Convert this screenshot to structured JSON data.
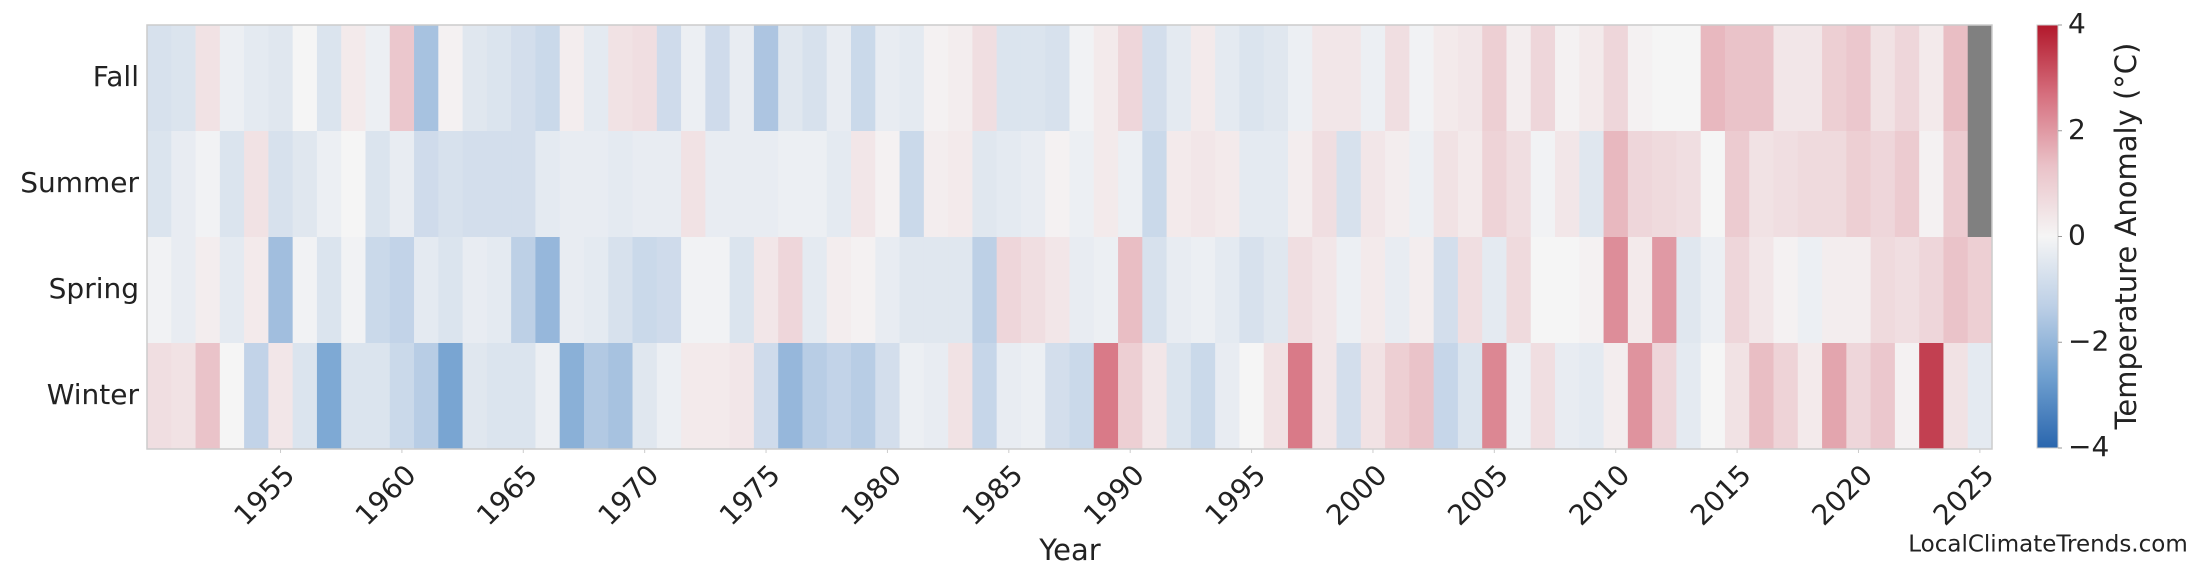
{
  "chart_data": {
    "type": "heatmap",
    "xlabel": "Year",
    "colorbar_label": "Temperature Anomaly (°C)",
    "watermark": "LocalClimateTrends.com",
    "x": [
      1950,
      1951,
      1952,
      1953,
      1954,
      1955,
      1956,
      1957,
      1958,
      1959,
      1960,
      1961,
      1962,
      1963,
      1964,
      1965,
      1966,
      1967,
      1968,
      1969,
      1970,
      1971,
      1972,
      1973,
      1974,
      1975,
      1976,
      1977,
      1978,
      1979,
      1980,
      1981,
      1982,
      1983,
      1984,
      1985,
      1986,
      1987,
      1988,
      1989,
      1990,
      1991,
      1992,
      1993,
      1994,
      1995,
      1996,
      1997,
      1998,
      1999,
      2000,
      2001,
      2002,
      2003,
      2004,
      2005,
      2006,
      2007,
      2008,
      2009,
      2010,
      2011,
      2012,
      2013,
      2014,
      2015,
      2016,
      2017,
      2018,
      2019,
      2020,
      2021,
      2022,
      2023,
      2024,
      2025
    ],
    "xlim": [
      1949.5,
      2025.5
    ],
    "xticks": [
      1955,
      1960,
      1965,
      1970,
      1975,
      1980,
      1985,
      1990,
      1995,
      2000,
      2005,
      2010,
      2015,
      2020,
      2025
    ],
    "series": [
      {
        "name": "Fall",
        "values": [
          -0.7,
          -0.6,
          0.5,
          -0.2,
          -0.4,
          -0.5,
          0,
          -0.6,
          0.3,
          -0.2,
          1.2,
          -1.7,
          0.1,
          -0.5,
          -0.6,
          -0.8,
          -1.0,
          0.2,
          -0.4,
          0.5,
          0.6,
          -0.9,
          -0.2,
          -0.9,
          -0.3,
          -1.6,
          -0.5,
          -0.7,
          -0.3,
          -1.0,
          -0.3,
          -0.4,
          0.1,
          0.2,
          0.6,
          -0.6,
          -0.6,
          -0.7,
          -0.1,
          0.3,
          0.8,
          -0.8,
          -0.4,
          0.3,
          -0.4,
          -0.6,
          -0.5,
          -0.2,
          0.4,
          0.4,
          -0.2,
          0.6,
          -0.1,
          0.3,
          0.4,
          1.0,
          0.2,
          0.8,
          0.1,
          0.3,
          0.8,
          0.1,
          0.0,
          0.0,
          1.5,
          1.3,
          1.3,
          0.4,
          0.4,
          1.0,
          1.2,
          0.5,
          0.8,
          0.3,
          1.4,
          null
        ]
      },
      {
        "name": "Summer",
        "values": [
          -0.6,
          -0.3,
          -0.1,
          -0.6,
          0.5,
          -0.7,
          -0.5,
          -0.2,
          0.0,
          -0.6,
          -0.3,
          -0.9,
          -0.7,
          -0.8,
          -0.8,
          -0.8,
          -0.4,
          -0.3,
          -0.3,
          -0.4,
          -0.3,
          -0.3,
          0.5,
          -0.3,
          -0.3,
          -0.3,
          -0.2,
          -0.2,
          -0.4,
          0.4,
          0.1,
          -1.0,
          0.2,
          0.3,
          -0.5,
          -0.4,
          -0.3,
          0.1,
          -0.2,
          0.3,
          -0.2,
          -1.0,
          0.3,
          0.4,
          0.3,
          -0.4,
          -0.4,
          0.2,
          0.6,
          -0.7,
          0.4,
          0.2,
          -0.2,
          0.5,
          0.3,
          0.9,
          0.6,
          -0.1,
          0.4,
          -0.5,
          1.5,
          0.8,
          0.7,
          0.6,
          0.0,
          1.1,
          0.5,
          0.6,
          0.7,
          0.7,
          1.0,
          0.8,
          1.1,
          0.1,
          1.1,
          null
        ]
      },
      {
        "name": "Spring",
        "values": [
          -0.1,
          -0.3,
          0.2,
          -0.4,
          0.3,
          -1.8,
          -0.1,
          -0.6,
          -0.1,
          -1.0,
          -1.2,
          -0.4,
          -0.6,
          -0.3,
          -0.4,
          -1.3,
          -2.0,
          -0.3,
          -0.4,
          -0.7,
          -1.0,
          -0.9,
          -0.1,
          -0.1,
          -0.6,
          0.4,
          0.8,
          -0.4,
          0.2,
          0.1,
          -0.3,
          -0.5,
          -0.5,
          -0.5,
          -1.3,
          0.8,
          0.6,
          0.4,
          -0.3,
          -0.2,
          1.4,
          -0.7,
          -0.3,
          -0.2,
          -0.4,
          -0.7,
          -0.5,
          0.6,
          0.4,
          -0.2,
          0.3,
          -0.3,
          0.2,
          -0.8,
          0.6,
          -0.4,
          0.7,
          0.0,
          0.0,
          0.1,
          2.2,
          0.3,
          2.0,
          -0.5,
          -0.2,
          0.8,
          0.4,
          0.1,
          -0.2,
          0.2,
          0.2,
          0.7,
          0.6,
          0.8,
          1.3,
          1.0
        ]
      },
      {
        "name": "Winter",
        "values": [
          0.6,
          0.5,
          1.3,
          0.0,
          -1.2,
          0.4,
          -0.6,
          -2.4,
          -0.6,
          -0.6,
          -1.0,
          -1.4,
          -2.5,
          -0.5,
          -0.6,
          -0.6,
          -0.2,
          -2.2,
          -1.5,
          -1.7,
          -0.5,
          -0.2,
          0.3,
          0.3,
          0.4,
          -0.9,
          -2.0,
          -1.4,
          -1.2,
          -1.4,
          -0.8,
          -0.2,
          -0.3,
          0.5,
          -1.1,
          -0.3,
          -0.2,
          -0.8,
          -1.0,
          2.5,
          1.0,
          0.4,
          -0.6,
          -1.0,
          -0.3,
          0.0,
          0.5,
          2.5,
          0.4,
          -0.8,
          0.5,
          1.0,
          1.3,
          -1.1,
          -0.6,
          2.3,
          -0.2,
          0.6,
          -0.3,
          -0.4,
          0.2,
          2.1,
          0.8,
          -0.4,
          0.0,
          0.5,
          1.4,
          0.9,
          0.3,
          1.8,
          0.8,
          1.2,
          0.1,
          3.4,
          0.5,
          -0.4
        ]
      }
    ],
    "zlim": [
      -4,
      4
    ],
    "zticks": [
      {
        "value": -4,
        "label": "−4"
      },
      {
        "value": -2,
        "label": "−2"
      },
      0,
      2,
      4
    ],
    "colors": [
      "#2a66ae",
      "#6f9fcf",
      "#bccfe6",
      "#f5f5f5",
      "#eac2c8",
      "#d6707f",
      "#b2182b"
    ],
    "missing_color": "#808080"
  }
}
